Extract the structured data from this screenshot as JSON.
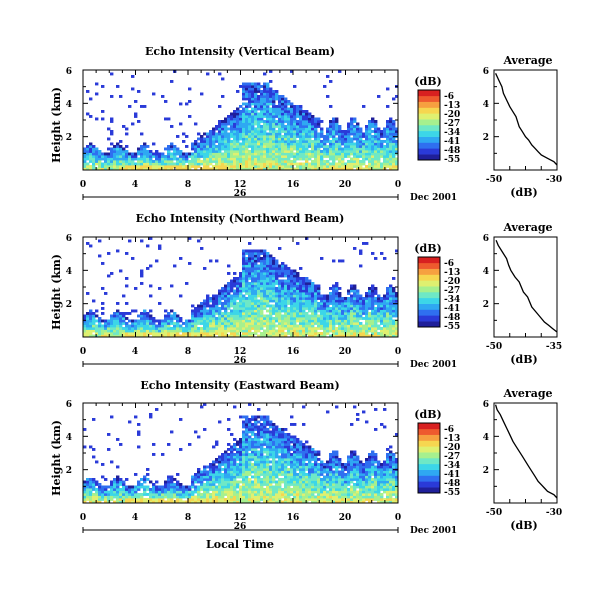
{
  "chart_data": [
    {
      "type": "heatmap",
      "title": "Echo Intensity (Vertical Beam)",
      "ylabel": "Height (km)",
      "ylim": [
        0,
        6
      ],
      "yticks": [
        "2",
        "4",
        "6"
      ],
      "xticks": [
        "0",
        "4",
        "8",
        "12",
        "16",
        "20",
        "0"
      ],
      "date_label": "Dec 2001",
      "day_label": "26",
      "colorbar": {
        "unit": "(dB)",
        "ticks": [
          "-6",
          "-13",
          "-20",
          "-27",
          "-34",
          "-41",
          "-48",
          "-55"
        ]
      },
      "avg": {
        "title": "Average",
        "xlabel": "(dB)",
        "xticks": [
          "-50",
          "-30"
        ],
        "xlim": [
          -50,
          -30
        ],
        "yticks": [
          "2",
          "4",
          "6"
        ],
        "profile": [
          [
            -30,
            0.3
          ],
          [
            -31,
            0.5
          ],
          [
            -33,
            0.7
          ],
          [
            -35,
            0.9
          ],
          [
            -36,
            1.1
          ],
          [
            -37,
            1.3
          ],
          [
            -38,
            1.5
          ],
          [
            -39,
            1.8
          ],
          [
            -40,
            2.0
          ],
          [
            -41,
            2.3
          ],
          [
            -42,
            2.6
          ],
          [
            -42.5,
            2.9
          ],
          [
            -43,
            3.2
          ],
          [
            -44,
            3.5
          ],
          [
            -45,
            3.8
          ],
          [
            -46,
            4.2
          ],
          [
            -47,
            4.6
          ],
          [
            -47.5,
            5.0
          ],
          [
            -48.5,
            5.4
          ],
          [
            -49.5,
            5.8
          ]
        ]
      }
    },
    {
      "type": "heatmap",
      "title": "Echo Intensity (Northward Beam)",
      "ylabel": "Height (km)",
      "ylim": [
        0,
        6
      ],
      "yticks": [
        "2",
        "4",
        "6"
      ],
      "xticks": [
        "0",
        "4",
        "8",
        "12",
        "16",
        "20",
        "0"
      ],
      "date_label": "Dec 2001",
      "day_label": "26",
      "colorbar": {
        "unit": "(dB)",
        "ticks": [
          "-6",
          "-13",
          "-20",
          "-27",
          "-34",
          "-41",
          "-48",
          "-55"
        ]
      },
      "avg": {
        "title": "Average",
        "xlabel": "(dB)",
        "xticks": [
          "-50",
          "-35"
        ],
        "xlim": [
          -50,
          -35
        ],
        "yticks": [
          "2",
          "4",
          "6"
        ],
        "profile": [
          [
            -35,
            0.3
          ],
          [
            -36,
            0.5
          ],
          [
            -37,
            0.7
          ],
          [
            -38,
            0.9
          ],
          [
            -39,
            1.2
          ],
          [
            -40,
            1.5
          ],
          [
            -41,
            1.8
          ],
          [
            -41.5,
            2.1
          ],
          [
            -42,
            2.4
          ],
          [
            -43,
            2.7
          ],
          [
            -43.5,
            3.0
          ],
          [
            -44,
            3.3
          ],
          [
            -45,
            3.6
          ],
          [
            -46,
            4.0
          ],
          [
            -46.5,
            4.3
          ],
          [
            -47,
            4.7
          ],
          [
            -48,
            5.1
          ],
          [
            -49,
            5.5
          ],
          [
            -49.5,
            5.8
          ]
        ]
      }
    },
    {
      "type": "heatmap",
      "title": "Echo Intensity (Eastward Beam)",
      "ylabel": "Height (km)",
      "ylim": [
        0,
        6
      ],
      "yticks": [
        "2",
        "4",
        "6"
      ],
      "xticks": [
        "0",
        "4",
        "8",
        "12",
        "16",
        "20",
        "0"
      ],
      "date_label": "Dec 2001",
      "day_label": "26",
      "colorbar": {
        "unit": "(dB)",
        "ticks": [
          "-6",
          "-13",
          "-20",
          "-27",
          "-34",
          "-41",
          "-48",
          "-55"
        ]
      },
      "avg": {
        "title": "Average",
        "xlabel": "(dB)",
        "xticks": [
          "-50",
          "-30"
        ],
        "xlim": [
          -50,
          -30
        ],
        "yticks": [
          "2",
          "4",
          "6"
        ],
        "profile": [
          [
            -30,
            0.3
          ],
          [
            -31,
            0.5
          ],
          [
            -33,
            0.7
          ],
          [
            -34,
            0.9
          ],
          [
            -35,
            1.1
          ],
          [
            -36,
            1.3
          ],
          [
            -37,
            1.6
          ],
          [
            -38,
            1.9
          ],
          [
            -39,
            2.2
          ],
          [
            -40,
            2.5
          ],
          [
            -41,
            2.8
          ],
          [
            -42,
            3.1
          ],
          [
            -43,
            3.4
          ],
          [
            -44,
            3.7
          ],
          [
            -45,
            4.1
          ],
          [
            -46,
            4.5
          ],
          [
            -47,
            4.9
          ],
          [
            -48,
            5.3
          ],
          [
            -49,
            5.6
          ],
          [
            -49.5,
            5.9
          ]
        ]
      }
    }
  ],
  "footer": {
    "xlabel": "Local Time"
  },
  "colors": [
    "#1f1f9a",
    "#2a3ad8",
    "#2f6ff0",
    "#2fa8f2",
    "#3cd6e8",
    "#6ee8c6",
    "#a6f08e",
    "#dff070",
    "#f6d650",
    "#f6a040",
    "#ee5a2e",
    "#d82020"
  ]
}
